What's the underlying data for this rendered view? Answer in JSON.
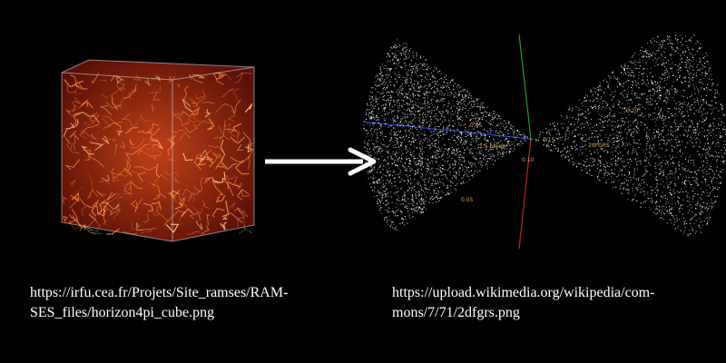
{
  "images": {
    "left": {
      "icon": "galaxy-filament-cube-image",
      "caption_lines": [
        "https://irfu.cea.fr/Projets/Site_ramses/RAM-",
        "SES_files/horizon4pi_cube.png"
      ]
    },
    "arrow": {
      "icon": "right-arrow-icon"
    },
    "right": {
      "icon": "redshift-survey-wedge-image",
      "caption_lines": [
        "https://upload.wikimedia.org/wikipedia/com-",
        "mons/7/71/2dfgrs.png"
      ],
      "survey_labels": [
        "0.05",
        "1.5 billion",
        "0.10",
        "0.15",
        "0.20",
        "2dFGRS",
        "0.05"
      ]
    }
  },
  "colors": {
    "background": "#000000",
    "text": "#ffffff",
    "filament": "#ff8a3d",
    "label": "#d9a35a"
  }
}
